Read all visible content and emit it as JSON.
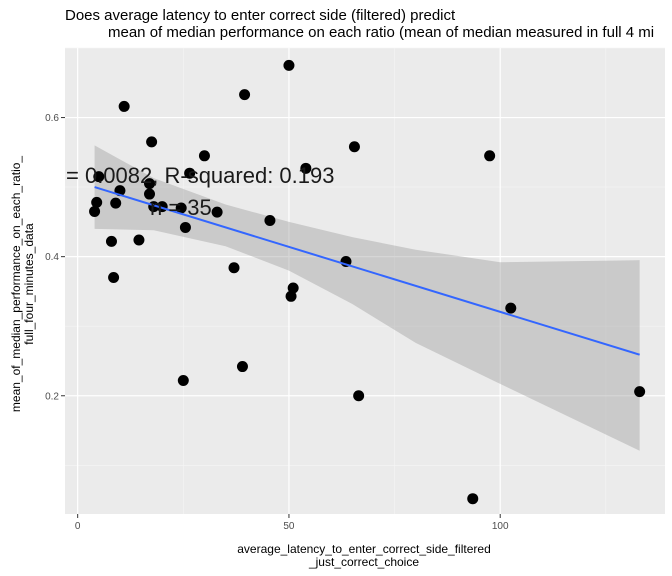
{
  "chart_data": {
    "type": "scatter",
    "title_lines": [
      "Does average latency to enter correct side (filtered) predict",
      "mean of median performance on each ratio (mean of median measured in full 4 mi"
    ],
    "xlabel_lines": [
      "average_latency_to_enter_correct_side_filtered",
      "_just_correct_choice"
    ],
    "ylabel_lines": [
      "mean_of_median_performance_on_each_ratio_",
      "full_four_minutes_data"
    ],
    "xlim": [
      -3,
      139
    ],
    "ylim": [
      0.03,
      0.7
    ],
    "x_ticks": [
      0,
      50,
      100
    ],
    "x_tick_labels": [
      "0",
      "50",
      "100"
    ],
    "y_ticks": [
      0.2,
      0.4,
      0.6
    ],
    "y_tick_labels": [
      "0.2",
      "0.4",
      "0.6"
    ],
    "grid": true,
    "points": [
      {
        "x": 4,
        "y": 0.465
      },
      {
        "x": 4.5,
        "y": 0.478
      },
      {
        "x": 5,
        "y": 0.515
      },
      {
        "x": 8,
        "y": 0.422
      },
      {
        "x": 8.5,
        "y": 0.37
      },
      {
        "x": 9,
        "y": 0.477
      },
      {
        "x": 10,
        "y": 0.495
      },
      {
        "x": 11,
        "y": 0.616
      },
      {
        "x": 14.5,
        "y": 0.424
      },
      {
        "x": 17,
        "y": 0.49
      },
      {
        "x": 17,
        "y": 0.505
      },
      {
        "x": 17.5,
        "y": 0.565
      },
      {
        "x": 18,
        "y": 0.472
      },
      {
        "x": 20,
        "y": 0.472
      },
      {
        "x": 24.5,
        "y": 0.47
      },
      {
        "x": 25,
        "y": 0.222
      },
      {
        "x": 25.5,
        "y": 0.442
      },
      {
        "x": 26.5,
        "y": 0.52
      },
      {
        "x": 30,
        "y": 0.545
      },
      {
        "x": 33,
        "y": 0.464
      },
      {
        "x": 37,
        "y": 0.384
      },
      {
        "x": 39,
        "y": 0.242
      },
      {
        "x": 39.5,
        "y": 0.633
      },
      {
        "x": 45.5,
        "y": 0.452
      },
      {
        "x": 50,
        "y": 0.675
      },
      {
        "x": 50.5,
        "y": 0.343
      },
      {
        "x": 51,
        "y": 0.355
      },
      {
        "x": 54,
        "y": 0.527
      },
      {
        "x": 63.5,
        "y": 0.393
      },
      {
        "x": 65.5,
        "y": 0.558
      },
      {
        "x": 66.5,
        "y": 0.2
      },
      {
        "x": 93.5,
        "y": 0.052
      },
      {
        "x": 97.5,
        "y": 0.545
      },
      {
        "x": 102.5,
        "y": 0.326
      },
      {
        "x": 133,
        "y": 0.206
      }
    ],
    "fit_line": {
      "x": [
        4,
        133
      ],
      "y": [
        0.5,
        0.259
      ]
    },
    "confidence_band": {
      "x": [
        4,
        18,
        35,
        50,
        65,
        80,
        100,
        133
      ],
      "upper": [
        0.56,
        0.513,
        0.475,
        0.45,
        0.428,
        0.41,
        0.392,
        0.395
      ],
      "lower": [
        0.44,
        0.438,
        0.415,
        0.38,
        0.332,
        0.276,
        0.217,
        0.121
      ]
    },
    "annotation_lines": [
      "= 0.0082, R-squared:  0.193",
      "n = 35"
    ],
    "colors": {
      "panel": "#ebebeb",
      "grid_major": "#ffffff",
      "grid_minor": "#f5f5f5",
      "point": "#000000",
      "fit": "#3366ff",
      "band": "#999999"
    }
  }
}
